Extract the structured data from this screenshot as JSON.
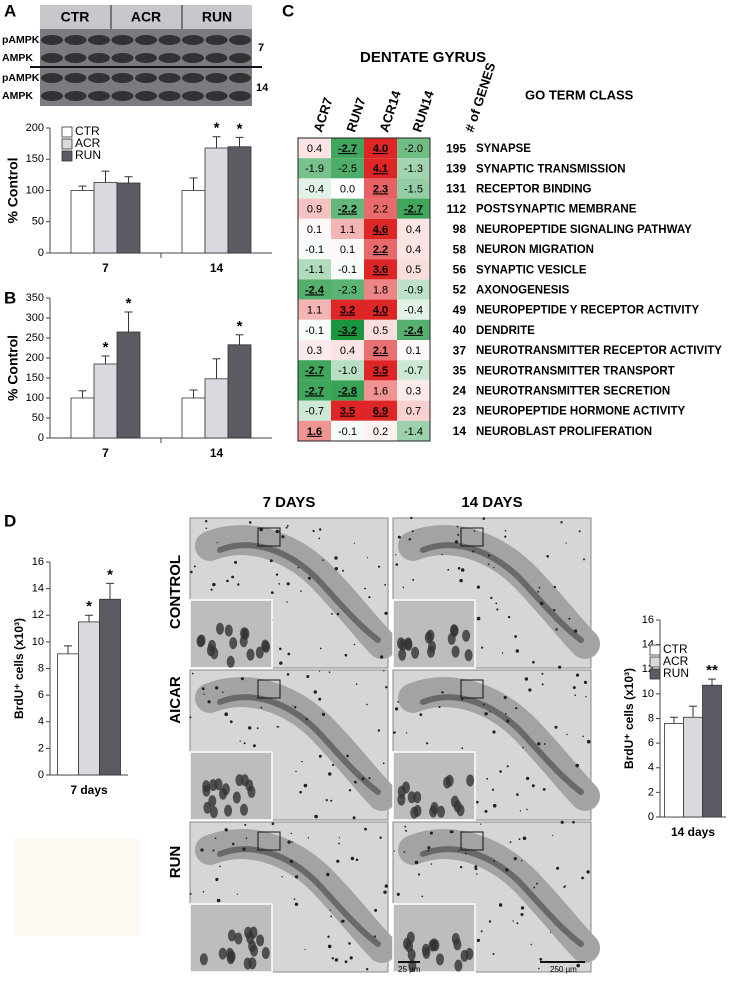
{
  "panel_labels": [
    "A",
    "B",
    "C",
    "D"
  ],
  "blot": {
    "lanes": [
      "CTR",
      "ACR",
      "RUN"
    ],
    "rows": [
      "pAMPK",
      "AMPK",
      "pAMPK",
      "AMPK"
    ],
    "timepoints": [
      "7",
      "14"
    ]
  },
  "chart_data": [
    {
      "type": "bar",
      "ylabel": "% Control",
      "categories": [
        "7",
        "14"
      ],
      "ylim": [
        0,
        200
      ],
      "yticks": [
        0,
        50,
        100,
        150,
        200
      ],
      "legend": "upper left",
      "series": [
        {
          "name": "CTR",
          "color": "#ffffff",
          "values": [
            100,
            100
          ],
          "errors": [
            7,
            20
          ],
          "markers": [
            null,
            null
          ]
        },
        {
          "name": "ACR",
          "color": "#d9d9e0",
          "values": [
            113,
            168
          ],
          "errors": [
            18,
            18
          ],
          "markers": [
            null,
            "*"
          ]
        },
        {
          "name": "RUN",
          "color": "#5b5b63",
          "values": [
            112,
            170
          ],
          "errors": [
            10,
            15
          ],
          "markers": [
            null,
            "*"
          ]
        }
      ]
    },
    {
      "type": "bar",
      "ylabel": "% Control",
      "categories": [
        "7",
        "14"
      ],
      "ylim": [
        0,
        350
      ],
      "yticks": [
        0,
        50,
        100,
        150,
        200,
        250,
        300,
        350
      ],
      "series": [
        {
          "color": "#ffffff",
          "values": [
            100,
            100
          ],
          "errors": [
            18,
            20
          ],
          "markers": [
            null,
            null
          ]
        },
        {
          "color": "#d9d9e0",
          "values": [
            185,
            148
          ],
          "errors": [
            20,
            50
          ],
          "markers": [
            "*",
            null
          ]
        },
        {
          "color": "#5b5b63",
          "values": [
            265,
            233
          ],
          "errors": [
            50,
            25
          ],
          "markers": [
            "*",
            "*"
          ]
        }
      ]
    },
    {
      "type": "bar",
      "ylabel": "BrdU⁺ cells (x10³)",
      "categories": [
        "7 days"
      ],
      "ylim": [
        0,
        16
      ],
      "yticks": [
        0,
        2,
        4,
        6,
        8,
        10,
        12,
        14,
        16
      ],
      "series": [
        {
          "color": "#ffffff",
          "values": [
            9.1
          ],
          "errors": [
            0.6
          ],
          "markers": [
            null
          ]
        },
        {
          "color": "#d9d9e0",
          "values": [
            11.5
          ],
          "errors": [
            0.5
          ],
          "markers": [
            "*"
          ]
        },
        {
          "color": "#5b5b63",
          "values": [
            13.2
          ],
          "errors": [
            1.2
          ],
          "markers": [
            "*"
          ]
        }
      ]
    },
    {
      "type": "bar",
      "ylabel": "BrdU⁺ cells (x10³)",
      "categories": [
        "14 days"
      ],
      "ylim": [
        0,
        16
      ],
      "yticks": [
        0,
        2,
        4,
        6,
        8,
        10,
        12,
        14,
        16
      ],
      "legend": "upper left",
      "series": [
        {
          "name": "CTR",
          "color": "#ffffff",
          "values": [
            7.6
          ],
          "errors": [
            0.5
          ],
          "markers": [
            null
          ]
        },
        {
          "name": "ACR",
          "color": "#d9d9e0",
          "values": [
            8.1
          ],
          "errors": [
            0.9
          ],
          "markers": [
            null
          ]
        },
        {
          "name": "RUN",
          "color": "#5b5b63",
          "values": [
            10.7
          ],
          "errors": [
            0.5
          ],
          "markers": [
            "**"
          ]
        }
      ]
    }
  ],
  "heatmap": {
    "title": "DENTATE GYRUS",
    "columns": [
      "ACR7",
      "RUN7",
      "ACR14",
      "RUN14"
    ],
    "count_label": "# of GENES",
    "term_label": "GO TERM CLASS",
    "rows": [
      {
        "term": "SYNAPSE",
        "genes": 195,
        "values": [
          0.4,
          -2.7,
          4,
          -2
        ],
        "value_labels": [
          "0.4",
          "-2.7",
          "4.0",
          "-2.0"
        ],
        "significant": [
          false,
          true,
          true,
          false
        ]
      },
      {
        "term": "SYNAPTIC TRANSMISSION",
        "genes": 139,
        "values": [
          -1.9,
          -2.5,
          4.1,
          -1.3
        ],
        "value_labels": [
          "-1.9",
          "-2.5",
          "4.1",
          "-1.3"
        ],
        "significant": [
          false,
          false,
          true,
          false
        ]
      },
      {
        "term": "RECEPTOR BINDING",
        "genes": 131,
        "values": [
          -0.4,
          0,
          2.3,
          -1.5
        ],
        "value_labels": [
          "-0.4",
          "0.0",
          "2.3",
          "-1.5"
        ],
        "significant": [
          false,
          false,
          true,
          false
        ]
      },
      {
        "term": "POSTSYNAPTIC MEMBRANE",
        "genes": 112,
        "values": [
          0.9,
          -2.2,
          2.2,
          -2.7
        ],
        "value_labels": [
          "0.9",
          "-2.2",
          "2.2",
          "-2.7"
        ],
        "significant": [
          false,
          true,
          false,
          true
        ]
      },
      {
        "term": "NEUROPEPTIDE SIGNALING PATHWAY",
        "genes": 98,
        "values": [
          0.1,
          1.1,
          4.6,
          0.4
        ],
        "value_labels": [
          "0.1",
          "1.1",
          "4.6",
          "0.4"
        ],
        "significant": [
          false,
          false,
          true,
          false
        ]
      },
      {
        "term": "NEURON MIGRATION",
        "genes": 58,
        "values": [
          -0.1,
          0.1,
          2.2,
          0.4
        ],
        "value_labels": [
          "-0.1",
          "0.1",
          "2.2",
          "0.4"
        ],
        "significant": [
          false,
          false,
          true,
          false
        ]
      },
      {
        "term": "SYNAPTIC VESICLE",
        "genes": 56,
        "values": [
          -1.1,
          -0.1,
          3.6,
          0.5
        ],
        "value_labels": [
          "-1.1",
          "-0.1",
          "3.6",
          "0.5"
        ],
        "significant": [
          false,
          false,
          true,
          false
        ]
      },
      {
        "term": "AXONOGENESIS",
        "genes": 52,
        "values": [
          -2.4,
          -2.3,
          1.8,
          -0.9
        ],
        "value_labels": [
          "-2.4",
          "-2.3",
          "1.8",
          "-0.9"
        ],
        "significant": [
          true,
          false,
          false,
          false
        ]
      },
      {
        "term": "NEUROPEPTIDE Y RECEPTOR ACTIVITY",
        "genes": 49,
        "values": [
          1.1,
          3.2,
          4,
          -0.4
        ],
        "value_labels": [
          "1.1",
          "3.2",
          "4.0",
          "-0.4"
        ],
        "significant": [
          false,
          true,
          true,
          false
        ]
      },
      {
        "term": "DENDRITE",
        "genes": 40,
        "values": [
          -0.1,
          -3.2,
          0.5,
          -2.4
        ],
        "value_labels": [
          "-0.1",
          "-3.2",
          "0.5",
          "-2.4"
        ],
        "significant": [
          false,
          true,
          false,
          true
        ]
      },
      {
        "term": "NEUROTRANSMITTER RECEPTOR ACTIVITY",
        "genes": 37,
        "values": [
          0.3,
          0.4,
          2.1,
          0.1
        ],
        "value_labels": [
          "0.3",
          "0.4",
          "2.1",
          "0.1"
        ],
        "significant": [
          false,
          false,
          true,
          false
        ]
      },
      {
        "term": "NEUROTRANSMITTER TRANSPORT",
        "genes": 35,
        "values": [
          -2.7,
          -1,
          3.5,
          -0.7
        ],
        "value_labels": [
          "-2.7",
          "-1.0",
          "3.5",
          "-0.7"
        ],
        "significant": [
          true,
          false,
          true,
          false
        ]
      },
      {
        "term": "NEUROTRANSMITTER SECRETION",
        "genes": 24,
        "values": [
          -2.7,
          -2.8,
          1.6,
          0.3
        ],
        "value_labels": [
          "-2.7",
          "-2.8",
          "1.6",
          "0.3"
        ],
        "significant": [
          true,
          true,
          false,
          false
        ]
      },
      {
        "term": "NEUROPEPTIDE HORMONE ACTIVITY",
        "genes": 23,
        "values": [
          -0.7,
          3.5,
          6.9,
          0.7
        ],
        "value_labels": [
          "-0.7",
          "3.5",
          "6.9",
          "0.7"
        ],
        "significant": [
          false,
          true,
          true,
          false
        ]
      },
      {
        "term": "NEUROBLAST PROLIFERATION",
        "genes": 14,
        "values": [
          1.6,
          -0.1,
          0.2,
          -1.4
        ],
        "value_labels": [
          "1.6",
          "-0.1",
          "0.2",
          "-1.4"
        ],
        "significant": [
          true,
          false,
          false,
          false
        ]
      }
    ]
  },
  "micrographs": {
    "columns": [
      "7 DAYS",
      "14 DAYS"
    ],
    "rows": [
      "CONTROL",
      "AICAR",
      "RUN"
    ],
    "scale_bars": [
      "25 µm",
      "250 µm"
    ]
  }
}
